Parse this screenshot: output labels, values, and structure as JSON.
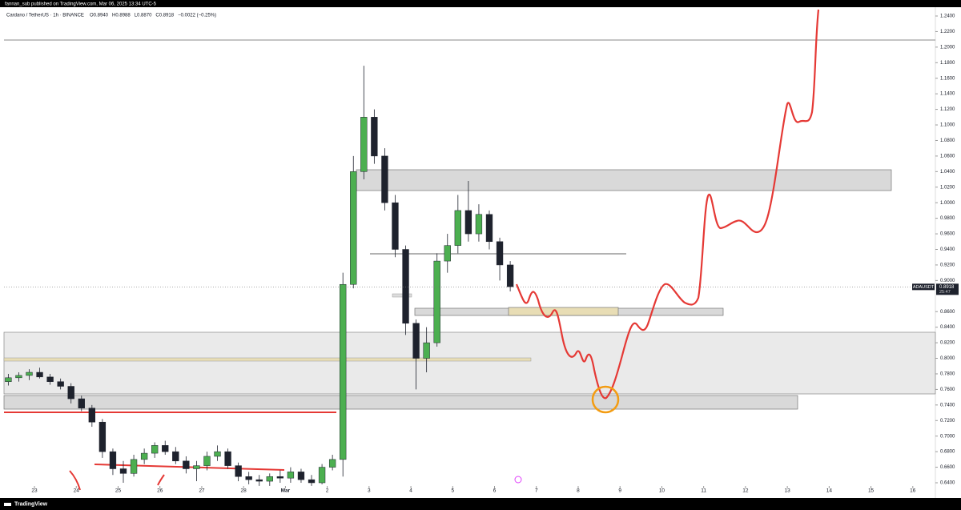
{
  "header": "fannan_sub published on TradingView.com, Mar 06, 2025 13:34 UTC-5",
  "footer": "TradingView",
  "chart_data": {
    "type": "candlestick",
    "title": "Cardano / TetherUS · 1h · BINANCE",
    "ohlc_legend": [
      "O0.8940",
      "H0.8988",
      "L0.8870",
      "C0.8918",
      "−0.0022 (−0.25%)"
    ],
    "up_color": "#4caf50",
    "down_color": "#1e222d",
    "x": [
      -0.625,
      -0.375,
      -0.125,
      0.125,
      0.375,
      0.625,
      0.875,
      1.125,
      1.375,
      1.625,
      1.875,
      2.125,
      2.375,
      2.625,
      2.875,
      3.125,
      3.375,
      3.625,
      3.875,
      4.125,
      4.375,
      4.625,
      4.875,
      5.125,
      5.375,
      5.625,
      5.875,
      6.125,
      6.375,
      6.625,
      6.875,
      7.125,
      7.375,
      7.625,
      7.875,
      8.125,
      8.375,
      8.625,
      8.875,
      9.125,
      9.375,
      9.625,
      9.875,
      10.125,
      10.375,
      10.625,
      10.875,
      11.125,
      11.375
    ],
    "open": [
      0.77,
      0.775,
      0.778,
      0.782,
      0.776,
      0.77,
      0.764,
      0.748,
      0.736,
      0.718,
      0.68,
      0.658,
      0.652,
      0.67,
      0.678,
      0.688,
      0.68,
      0.668,
      0.658,
      0.662,
      0.674,
      0.68,
      0.662,
      0.648,
      0.644,
      0.642,
      0.648,
      0.646,
      0.654,
      0.644,
      0.64,
      0.66,
      0.67,
      0.895,
      1.04,
      1.11,
      1.06,
      1.0,
      0.94,
      0.845,
      0.8,
      0.82,
      0.925,
      0.945,
      0.99,
      0.96,
      0.985,
      0.95,
      0.92
    ],
    "high": [
      0.78,
      0.782,
      0.786,
      0.788,
      0.78,
      0.774,
      0.768,
      0.752,
      0.74,
      0.722,
      0.684,
      0.668,
      0.676,
      0.684,
      0.692,
      0.694,
      0.686,
      0.674,
      0.668,
      0.68,
      0.688,
      0.684,
      0.666,
      0.654,
      0.65,
      0.652,
      0.656,
      0.66,
      0.658,
      0.65,
      0.664,
      0.676,
      0.91,
      1.06,
      1.176,
      1.12,
      1.07,
      1.01,
      0.945,
      0.85,
      0.84,
      0.935,
      0.96,
      1.01,
      1.028,
      0.998,
      0.99,
      0.955,
      0.925
    ],
    "low": [
      0.765,
      0.77,
      0.772,
      0.774,
      0.766,
      0.76,
      0.742,
      0.732,
      0.712,
      0.672,
      0.65,
      0.64,
      0.648,
      0.664,
      0.672,
      0.676,
      0.664,
      0.652,
      0.642,
      0.656,
      0.668,
      0.658,
      0.642,
      0.638,
      0.636,
      0.636,
      0.64,
      0.64,
      0.64,
      0.636,
      0.638,
      0.656,
      0.648,
      0.89,
      1.03,
      1.05,
      0.99,
      0.93,
      0.83,
      0.76,
      0.782,
      0.815,
      0.91,
      0.935,
      0.95,
      0.95,
      0.94,
      0.9,
      0.886
    ],
    "close": [
      0.775,
      0.778,
      0.782,
      0.776,
      0.77,
      0.764,
      0.748,
      0.736,
      0.718,
      0.68,
      0.658,
      0.652,
      0.67,
      0.678,
      0.688,
      0.68,
      0.668,
      0.658,
      0.662,
      0.674,
      0.68,
      0.662,
      0.648,
      0.644,
      0.642,
      0.648,
      0.646,
      0.654,
      0.644,
      0.64,
      0.66,
      0.67,
      0.895,
      1.04,
      1.11,
      1.06,
      1.0,
      0.94,
      0.845,
      0.8,
      0.82,
      0.925,
      0.945,
      0.99,
      0.96,
      0.985,
      0.95,
      0.92,
      0.892
    ],
    "xlim": [
      -0.728,
      21.54
    ],
    "xticks": [
      {
        "value": 0,
        "label": "23"
      },
      {
        "value": 1,
        "label": "24"
      },
      {
        "value": 2,
        "label": "25"
      },
      {
        "value": 3,
        "label": "26"
      },
      {
        "value": 4,
        "label": "27"
      },
      {
        "value": 5,
        "label": "28"
      },
      {
        "value": 6,
        "label": "Mar"
      },
      {
        "value": 7,
        "label": "2"
      },
      {
        "value": 8,
        "label": "3"
      },
      {
        "value": 9,
        "label": "4"
      },
      {
        "value": 10,
        "label": "5"
      },
      {
        "value": 11,
        "label": "6"
      },
      {
        "value": 12,
        "label": "7"
      },
      {
        "value": 13,
        "label": "8"
      },
      {
        "value": 14,
        "label": "9"
      },
      {
        "value": 15,
        "label": "10"
      },
      {
        "value": 16,
        "label": "11"
      },
      {
        "value": 17,
        "label": "12"
      },
      {
        "value": 18,
        "label": "13"
      },
      {
        "value": 19,
        "label": "14"
      },
      {
        "value": 20,
        "label": "15"
      },
      {
        "value": 21,
        "label": "16"
      }
    ],
    "ylim": [
      0.64,
      1.24
    ],
    "yticks": [
      {
        "value": 1.24,
        "label": "1.2400"
      },
      {
        "value": 1.22,
        "label": "1.2200"
      },
      {
        "value": 1.2,
        "label": "1.2000"
      },
      {
        "value": 1.18,
        "label": "1.1800"
      },
      {
        "value": 1.16,
        "label": "1.1600"
      },
      {
        "value": 1.14,
        "label": "1.1400"
      },
      {
        "value": 1.12,
        "label": "1.1200"
      },
      {
        "value": 1.1,
        "label": "1.1000"
      },
      {
        "value": 1.08,
        "label": "1.0800"
      },
      {
        "value": 1.06,
        "label": "1.0600"
      },
      {
        "value": 1.04,
        "label": "1.0400"
      },
      {
        "value": 1.02,
        "label": "1.0200"
      },
      {
        "value": 1.0,
        "label": "1.0000"
      },
      {
        "value": 0.98,
        "label": "0.9800"
      },
      {
        "value": 0.96,
        "label": "0.9600"
      },
      {
        "value": 0.94,
        "label": "0.9400"
      },
      {
        "value": 0.92,
        "label": "0.9200"
      },
      {
        "value": 0.9,
        "label": "0.9000"
      },
      {
        "value": 0.86,
        "label": "0.8600"
      },
      {
        "value": 0.84,
        "label": "0.8400"
      },
      {
        "value": 0.82,
        "label": "0.8200"
      },
      {
        "value": 0.8,
        "label": "0.8000"
      },
      {
        "value": 0.78,
        "label": "0.7800"
      },
      {
        "value": 0.76,
        "label": "0.7600"
      },
      {
        "value": 0.74,
        "label": "0.7400"
      },
      {
        "value": 0.72,
        "label": "0.7200"
      },
      {
        "value": 0.7,
        "label": "0.7000"
      },
      {
        "value": 0.68,
        "label": "0.6800"
      },
      {
        "value": 0.66,
        "label": "0.6600"
      },
      {
        "value": 0.64,
        "label": "0.6400"
      }
    ],
    "last_price": {
      "symbol": "ADAUSDT",
      "value": 0.8918,
      "label": "0.8918",
      "countdown": "25:47"
    }
  }
}
